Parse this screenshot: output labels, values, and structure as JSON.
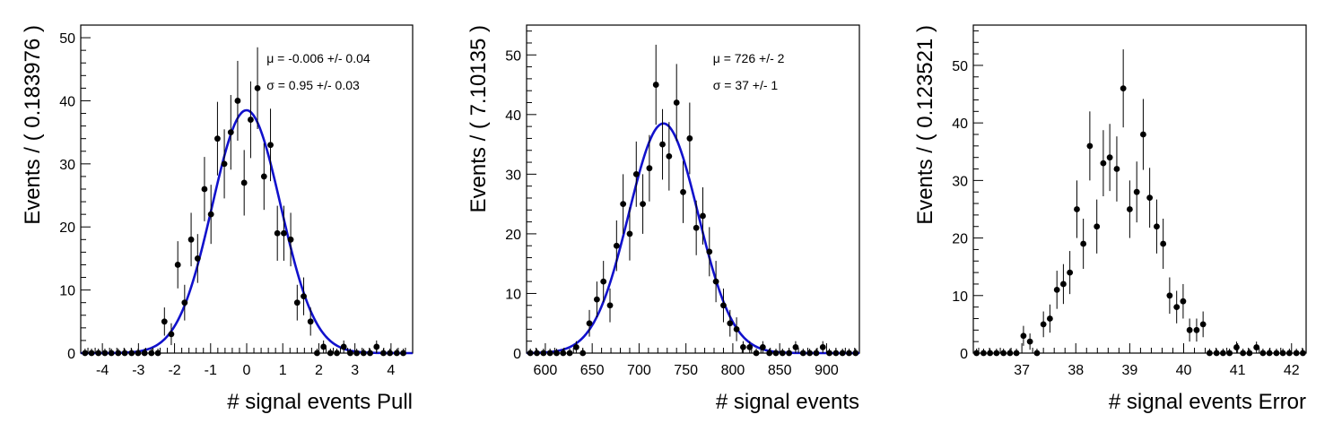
{
  "chart_data": [
    {
      "type": "scatter",
      "xlabel": "# signal events Pull",
      "ylabel": "Events / ( 0.183976 )",
      "xlim": [
        -4.6,
        4.6
      ],
      "ylim": [
        0,
        52
      ],
      "xticks": [
        -4,
        -3,
        -2,
        -1,
        0,
        1,
        2,
        3,
        4
      ],
      "yticks": [
        0,
        10,
        20,
        30,
        40,
        50
      ],
      "grid": false,
      "legend": "none",
      "annotations": [
        "μ = -0.006 +/- 0.04",
        "σ =  0.95 +/- 0.03"
      ],
      "fit": {
        "type": "gaussian",
        "mean": -0.006,
        "sigma": 0.95,
        "amplitude": 38.5,
        "color": "#1111cc"
      },
      "series": [
        {
          "x": [
            -4.48,
            -4.3,
            -4.11,
            -3.93,
            -3.75,
            -3.56,
            -3.38,
            -3.19,
            -3.01,
            -2.83,
            -2.64,
            -2.46,
            -2.28,
            -2.09,
            -1.91,
            -1.72,
            -1.54,
            -1.36,
            -1.17,
            -0.99,
            -0.81,
            -0.62,
            -0.44,
            -0.25,
            -0.07,
            0.11,
            0.3,
            0.48,
            0.66,
            0.85,
            1.03,
            1.22,
            1.4,
            1.58,
            1.77,
            1.95,
            2.13,
            2.32,
            2.5,
            2.69,
            2.87,
            3.05,
            3.24,
            3.42,
            3.6,
            3.79,
            3.97,
            4.16,
            4.34
          ],
          "y": [
            0,
            0,
            0,
            0,
            0,
            0,
            0,
            0,
            0,
            0,
            0,
            0,
            5,
            3,
            14,
            8,
            18,
            15,
            26,
            22,
            34,
            30,
            35,
            40,
            27,
            37,
            42,
            28,
            33,
            19,
            19,
            18,
            8,
            9,
            5,
            0,
            1,
            0,
            0,
            1,
            0,
            0,
            0,
            0,
            1,
            0,
            0,
            0,
            0
          ],
          "color": "#000000"
        }
      ]
    },
    {
      "type": "scatter",
      "xlabel": "# signal events",
      "ylabel": "Events / ( 7.10135 )",
      "xlim": [
        580,
        935
      ],
      "ylim": [
        0,
        55
      ],
      "xticks": [
        600,
        650,
        700,
        750,
        800,
        850,
        900
      ],
      "yticks": [
        0,
        10,
        20,
        30,
        40,
        50
      ],
      "grid": false,
      "legend": "none",
      "annotations": [
        "μ =  726 +/- 2",
        "σ =  37 +/- 1"
      ],
      "fit": {
        "type": "gaussian",
        "mean": 726,
        "sigma": 37,
        "amplitude": 38.5,
        "color": "#1111cc"
      },
      "series": [
        {
          "x": [
            584,
            591,
            598,
            605,
            612,
            619,
            626,
            633,
            640,
            647,
            655,
            662,
            669,
            676,
            683,
            690,
            697,
            704,
            711,
            718,
            725,
            732,
            740,
            747,
            754,
            761,
            768,
            775,
            782,
            790,
            797,
            804,
            811,
            818,
            825,
            832,
            839,
            846,
            853,
            860,
            867,
            875,
            882,
            889,
            896,
            903,
            910,
            917,
            924,
            931
          ],
          "y": [
            0,
            0,
            0,
            0,
            0,
            0,
            0,
            1,
            0,
            5,
            9,
            12,
            8,
            18,
            25,
            20,
            30,
            25,
            31,
            45,
            35,
            33,
            42,
            27,
            36,
            21,
            23,
            17,
            12,
            8,
            5,
            4,
            1,
            1,
            0,
            1,
            0,
            0,
            0,
            0,
            1,
            0,
            0,
            0,
            1,
            0,
            0,
            0,
            0,
            0
          ],
          "color": "#000000"
        }
      ]
    },
    {
      "type": "scatter",
      "xlabel": "# signal events Error",
      "ylabel": "Events / ( 0.123521 )",
      "xlim": [
        36.1,
        42.27
      ],
      "ylim": [
        0,
        57
      ],
      "xticks": [
        37,
        38,
        39,
        40,
        41,
        42
      ],
      "yticks": [
        0,
        10,
        20,
        30,
        40,
        50
      ],
      "grid": false,
      "legend": "none",
      "annotations": [],
      "series": [
        {
          "x": [
            36.16,
            36.29,
            36.41,
            36.53,
            36.66,
            36.78,
            36.9,
            37.03,
            37.15,
            37.28,
            37.4,
            37.52,
            37.65,
            37.77,
            37.89,
            38.02,
            38.14,
            38.26,
            38.39,
            38.51,
            38.63,
            38.76,
            38.88,
            39.0,
            39.13,
            39.25,
            39.37,
            39.5,
            39.62,
            39.74,
            39.87,
            39.99,
            40.11,
            40.24,
            40.36,
            40.48,
            40.61,
            40.73,
            40.85,
            40.98,
            41.1,
            41.22,
            41.35,
            41.47,
            41.59,
            41.72,
            41.84,
            41.96,
            42.09,
            42.21
          ],
          "y": [
            0,
            0,
            0,
            0,
            0,
            0,
            0,
            3,
            2,
            0,
            5,
            6,
            11,
            12,
            14,
            25,
            19,
            36,
            22,
            33,
            34,
            32,
            46,
            25,
            28,
            38,
            27,
            22,
            19,
            10,
            8,
            9,
            4,
            4,
            5,
            0,
            0,
            0,
            0,
            1,
            0,
            0,
            1,
            0,
            0,
            0,
            0,
            0,
            0,
            0
          ],
          "color": "#000000"
        }
      ]
    }
  ]
}
